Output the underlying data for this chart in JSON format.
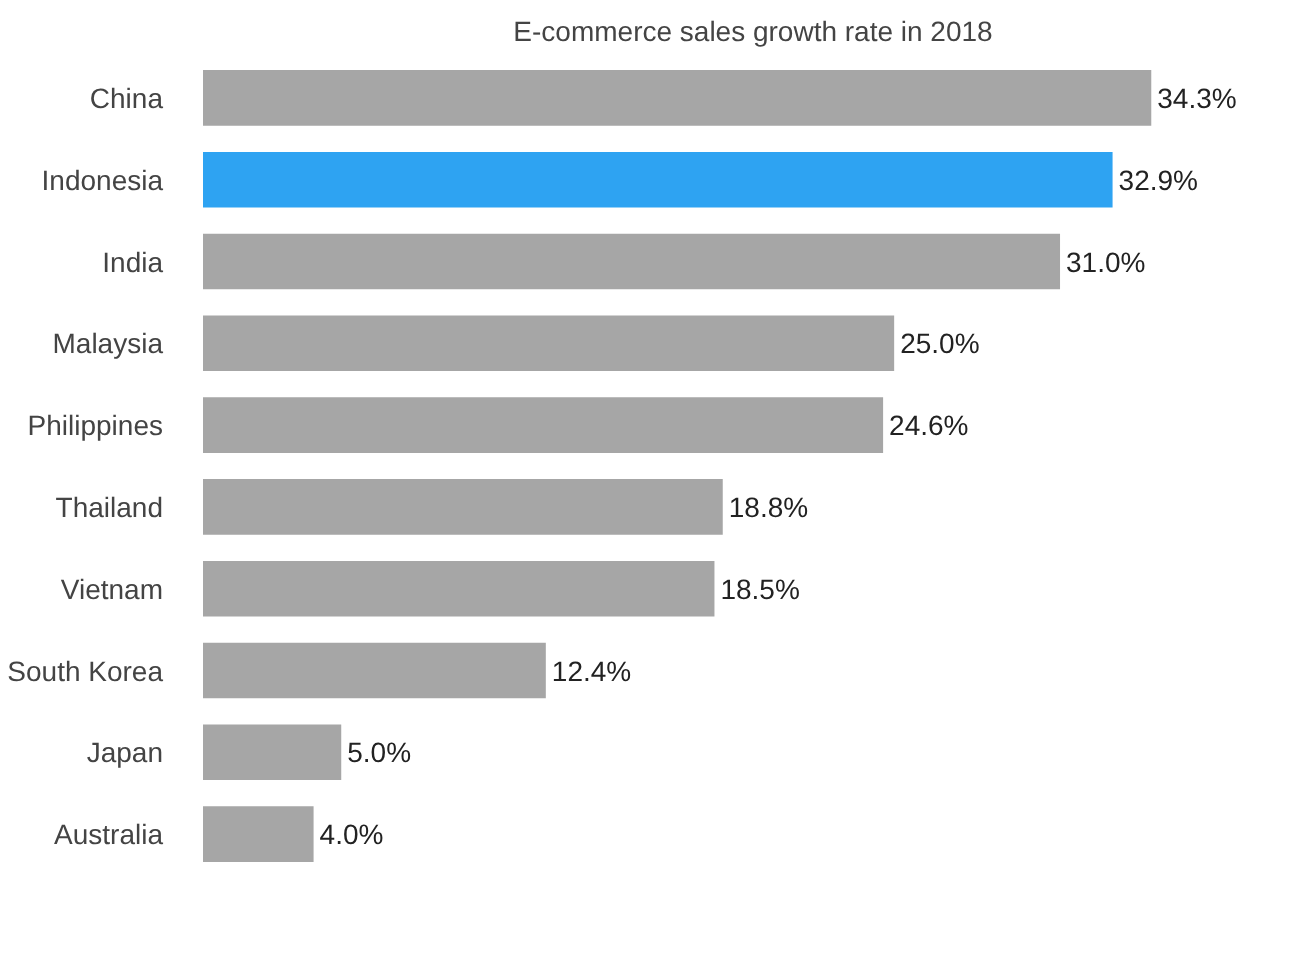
{
  "chart_data": {
    "type": "bar",
    "orientation": "horizontal",
    "title": "E-commerce sales growth rate in 2018",
    "categories": [
      "China",
      "Indonesia",
      "India",
      "Malaysia",
      "Philippines",
      "Thailand",
      "Vietnam",
      "South Korea",
      "Japan",
      "Australia"
    ],
    "values": [
      34.3,
      32.9,
      31.0,
      25.0,
      24.6,
      18.8,
      18.5,
      12.4,
      5.0,
      4.0
    ],
    "value_labels": [
      "34.3%",
      "32.9%",
      "31.0%",
      "25.0%",
      "24.6%",
      "18.8%",
      "18.5%",
      "12.4%",
      "5.0%",
      "4.0%"
    ],
    "colors": [
      "#a6a6a6",
      "#2ea3f2",
      "#a6a6a6",
      "#a6a6a6",
      "#a6a6a6",
      "#a6a6a6",
      "#a6a6a6",
      "#a6a6a6",
      "#a6a6a6",
      "#a6a6a6"
    ],
    "tick_labels": "y",
    "grid": false
  }
}
